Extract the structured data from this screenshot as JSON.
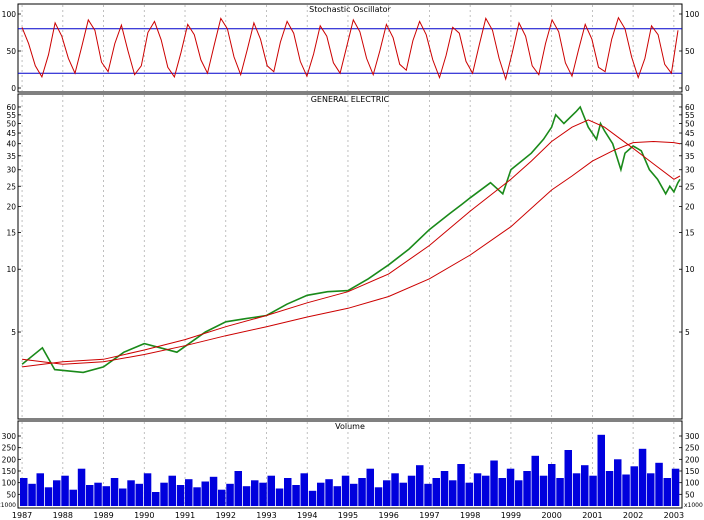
{
  "chart_data": [
    {
      "type": "line",
      "title": "Stochastic Oscillator",
      "ylim": [
        0,
        100
      ],
      "yticks": [
        0,
        25,
        50,
        75,
        100
      ],
      "reference_lines": [
        80,
        20
      ],
      "grid": "vertical-dotted",
      "series": [
        {
          "color": "#cc0000",
          "values": [
            82,
            60,
            30,
            15,
            45,
            88,
            70,
            40,
            20,
            55,
            92,
            78,
            35,
            22,
            60,
            85,
            50,
            18,
            30,
            75,
            90,
            65,
            28,
            15,
            48,
            86,
            72,
            38,
            20,
            58,
            94,
            80,
            42,
            18,
            52,
            88,
            66,
            30,
            22,
            62,
            90,
            74,
            36,
            16,
            46,
            84,
            70,
            34,
            20,
            56,
            92,
            76,
            40,
            18,
            50,
            86,
            68,
            32,
            24,
            64,
            90,
            72,
            38,
            14,
            44,
            82,
            74,
            36,
            20,
            58,
            94,
            78,
            40,
            12,
            48,
            88,
            70,
            30,
            18,
            60,
            92,
            76,
            34,
            16,
            52,
            86,
            66,
            28,
            22,
            66,
            95,
            80,
            42,
            14,
            40,
            84,
            72,
            32,
            20,
            78
          ]
        }
      ]
    },
    {
      "type": "line",
      "title": "GENERAL ELECTRIC",
      "x": [
        "1987",
        "1988",
        "1989",
        "1990",
        "1991",
        "1992",
        "1993",
        "1994",
        "1995",
        "1996",
        "1997",
        "1998",
        "1999",
        "2000",
        "2001",
        "2002",
        "2003"
      ],
      "xlim": [
        1986.9,
        2003.2
      ],
      "ylim": [
        2,
        62
      ],
      "yticks": [
        5,
        10,
        15,
        20,
        25,
        30,
        35,
        40,
        45,
        50,
        55,
        60
      ],
      "scale": "log",
      "grid": "vertical-dotted",
      "series": [
        {
          "color": "#1a8a1a",
          "values": [
            [
              1987.0,
              3.5
            ],
            [
              1987.5,
              4.2
            ],
            [
              1987.8,
              3.3
            ],
            [
              1988.5,
              3.2
            ],
            [
              1989.0,
              3.4
            ],
            [
              1989.5,
              4.0
            ],
            [
              1990.0,
              4.4
            ],
            [
              1990.8,
              4.0
            ],
            [
              1991.5,
              5.0
            ],
            [
              1992.0,
              5.6
            ],
            [
              1992.5,
              5.8
            ],
            [
              1993.0,
              6.0
            ],
            [
              1993.5,
              6.8
            ],
            [
              1994.0,
              7.5
            ],
            [
              1994.5,
              7.8
            ],
            [
              1995.0,
              7.9
            ],
            [
              1995.5,
              9.0
            ],
            [
              1996.0,
              10.5
            ],
            [
              1996.5,
              12.5
            ],
            [
              1997.0,
              15.5
            ],
            [
              1997.5,
              18.5
            ],
            [
              1997.8,
              20.5
            ],
            [
              1998.0,
              22.0
            ],
            [
              1998.5,
              26.0
            ],
            [
              1998.8,
              23.0
            ],
            [
              1999.0,
              30.0
            ],
            [
              1999.5,
              36.0
            ],
            [
              1999.8,
              42.0
            ],
            [
              2000.0,
              48.0
            ],
            [
              2000.1,
              55.0
            ],
            [
              2000.3,
              50.0
            ],
            [
              2000.6,
              57.0
            ],
            [
              2000.7,
              60.0
            ],
            [
              2000.9,
              48.0
            ],
            [
              2001.1,
              42.0
            ],
            [
              2001.2,
              50.0
            ],
            [
              2001.3,
              46.0
            ],
            [
              2001.5,
              40.0
            ],
            [
              2001.7,
              30.0
            ],
            [
              2001.8,
              36.0
            ],
            [
              2002.0,
              39.0
            ],
            [
              2002.2,
              37.0
            ],
            [
              2002.4,
              30.0
            ],
            [
              2002.6,
              27.0
            ],
            [
              2002.8,
              23.0
            ],
            [
              2002.9,
              25.0
            ],
            [
              2003.0,
              23.5
            ],
            [
              2003.1,
              26.0
            ],
            [
              2003.15,
              27.0
            ]
          ]
        },
        {
          "color": "#cc0000",
          "values": [
            [
              1987.0,
              3.4
            ],
            [
              1988.0,
              3.6
            ],
            [
              1989.0,
              3.7
            ],
            [
              1990.0,
              4.1
            ],
            [
              1991.0,
              4.6
            ],
            [
              1992.0,
              5.3
            ],
            [
              1993.0,
              6.0
            ],
            [
              1994.0,
              6.9
            ],
            [
              1995.0,
              7.8
            ],
            [
              1996.0,
              9.5
            ],
            [
              1997.0,
              13.0
            ],
            [
              1998.0,
              19.0
            ],
            [
              1999.0,
              27.0
            ],
            [
              1999.5,
              33.0
            ],
            [
              2000.0,
              41.0
            ],
            [
              2000.5,
              48.0
            ],
            [
              2000.9,
              52.0
            ],
            [
              2001.3,
              48.0
            ],
            [
              2001.7,
              42.0
            ],
            [
              2002.0,
              38.0
            ],
            [
              2002.5,
              32.0
            ],
            [
              2003.0,
              27.0
            ],
            [
              2003.15,
              28.0
            ]
          ]
        },
        {
          "color": "#cc0000",
          "values": [
            [
              1987.0,
              3.7
            ],
            [
              1988.0,
              3.5
            ],
            [
              1989.0,
              3.6
            ],
            [
              1990.0,
              3.9
            ],
            [
              1991.0,
              4.3
            ],
            [
              1992.0,
              4.8
            ],
            [
              1993.0,
              5.3
            ],
            [
              1994.0,
              5.9
            ],
            [
              1995.0,
              6.5
            ],
            [
              1996.0,
              7.4
            ],
            [
              1997.0,
              9.0
            ],
            [
              1998.0,
              11.7
            ],
            [
              1999.0,
              16.0
            ],
            [
              2000.0,
              24.0
            ],
            [
              2000.5,
              28.0
            ],
            [
              2001.0,
              33.0
            ],
            [
              2001.5,
              37.0
            ],
            [
              2002.0,
              40.5
            ],
            [
              2002.5,
              41.0
            ],
            [
              2003.0,
              40.5
            ],
            [
              2003.15,
              40.0
            ]
          ]
        }
      ]
    },
    {
      "type": "bar",
      "title": "Volume",
      "ylim": [
        0,
        330
      ],
      "yticks": [
        50,
        100,
        150,
        200,
        250,
        300
      ],
      "scale_label": "x1000",
      "grid": "vertical-dotted",
      "series": [
        {
          "color": "#0000dd",
          "values": [
            120,
            95,
            140,
            80,
            110,
            130,
            70,
            160,
            90,
            100,
            85,
            120,
            75,
            110,
            95,
            140,
            60,
            100,
            130,
            90,
            115,
            80,
            105,
            125,
            70,
            95,
            150,
            85,
            110,
            100,
            130,
            75,
            120,
            90,
            140,
            65,
            100,
            115,
            85,
            130,
            95,
            120,
            160,
            80,
            110,
            140,
            100,
            130,
            175,
            95,
            120,
            150,
            110,
            180,
            100,
            140,
            130,
            195,
            120,
            160,
            110,
            150,
            215,
            130,
            180,
            120,
            240,
            140,
            175,
            130,
            305,
            150,
            200,
            135,
            170,
            245,
            140,
            185,
            120,
            160
          ]
        }
      ]
    }
  ]
}
